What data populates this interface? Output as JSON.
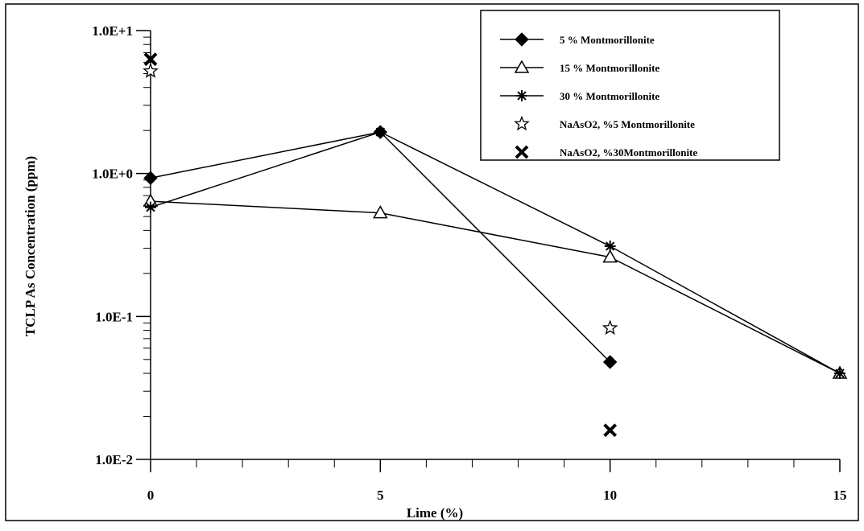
{
  "chart_data": {
    "type": "line",
    "title": "",
    "xlabel": "Lime (%)",
    "ylabel": "TCLP  As Concentration (ppm)",
    "y_scale": "log",
    "xlim": [
      0,
      15
    ],
    "ylim": [
      0.01,
      10
    ],
    "x_ticks": [
      0,
      5,
      10,
      15
    ],
    "x_tick_labels": [
      "0",
      "5",
      "10",
      "15"
    ],
    "y_ticks": [
      0.01,
      0.1,
      1,
      10
    ],
    "y_tick_labels": [
      "1.0E-2",
      "1.0E-1",
      "1.0E+0",
      "1.0E+1"
    ],
    "grid": false,
    "legend_position": "top-right",
    "series": [
      {
        "name": "5 %  Montmorillonite",
        "marker": "diamond-filled",
        "line": true,
        "points": [
          {
            "x": 0,
            "y": 0.93
          },
          {
            "x": 5,
            "y": 1.95
          },
          {
            "x": 10,
            "y": 0.048
          }
        ]
      },
      {
        "name": "15 % Montmorillonite",
        "marker": "triangle-open",
        "line": true,
        "points": [
          {
            "x": 0,
            "y": 0.64
          },
          {
            "x": 5,
            "y": 0.53
          },
          {
            "x": 10,
            "y": 0.26
          },
          {
            "x": 15,
            "y": 0.04
          }
        ]
      },
      {
        "name": "30 % Montmorillonite",
        "marker": "asterisk",
        "line": true,
        "points": [
          {
            "x": 0,
            "y": 0.58
          },
          {
            "x": 5,
            "y": 1.95
          },
          {
            "x": 10,
            "y": 0.31
          },
          {
            "x": 15,
            "y": 0.04
          }
        ]
      },
      {
        "name": "NaAsO2, %5 Montmorillonite",
        "marker": "star-open",
        "line": false,
        "points": [
          {
            "x": 0,
            "y": 5.2
          },
          {
            "x": 10,
            "y": 0.083
          }
        ]
      },
      {
        "name": "NaAsO2, %30Montmorillonite",
        "marker": "x-bold",
        "line": false,
        "points": [
          {
            "x": 0,
            "y": 6.3
          },
          {
            "x": 10,
            "y": 0.016
          }
        ]
      }
    ]
  }
}
